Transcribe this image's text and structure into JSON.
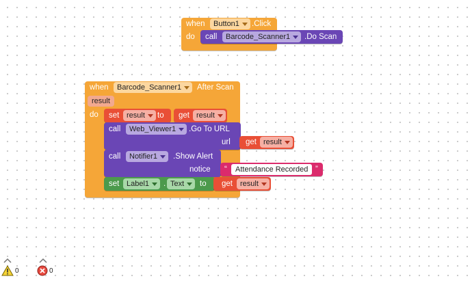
{
  "event1": {
    "when": "when",
    "component": "Button1",
    "event": ".Click",
    "do": "do",
    "call": "call",
    "target": "Barcode_Scanner1",
    "method": ".Do Scan"
  },
  "event2": {
    "when": "when",
    "component": "Barcode_Scanner1",
    "event": "After Scan",
    "param": "result",
    "do": "do",
    "set_var": {
      "set": "set",
      "var": "result",
      "to": "to",
      "get": "get",
      "get_var": "result"
    },
    "goto_url": {
      "call": "call",
      "component": "Web_Viewer1",
      "method": ".Go To URL",
      "arg": "url",
      "get": "get",
      "get_var": "result"
    },
    "show_alert": {
      "call": "call",
      "component": "Notifier1",
      "method": ".Show Alert",
      "arg": "notice",
      "open_quote": "“",
      "text": "Attendance Recorded",
      "close_quote": "”"
    },
    "set_label": {
      "set": "set",
      "component": "Label1",
      "dot": ".",
      "property": "Text",
      "to": "to",
      "get": "get",
      "get_var": "result"
    }
  },
  "indicators": {
    "warnings": "0",
    "errors": "0"
  },
  "colors": {
    "event": "#f5a638",
    "component_call": "#6a46b5",
    "variable": "#e94f36",
    "setter": "#4c9a4c",
    "text": "#db2b6c"
  }
}
